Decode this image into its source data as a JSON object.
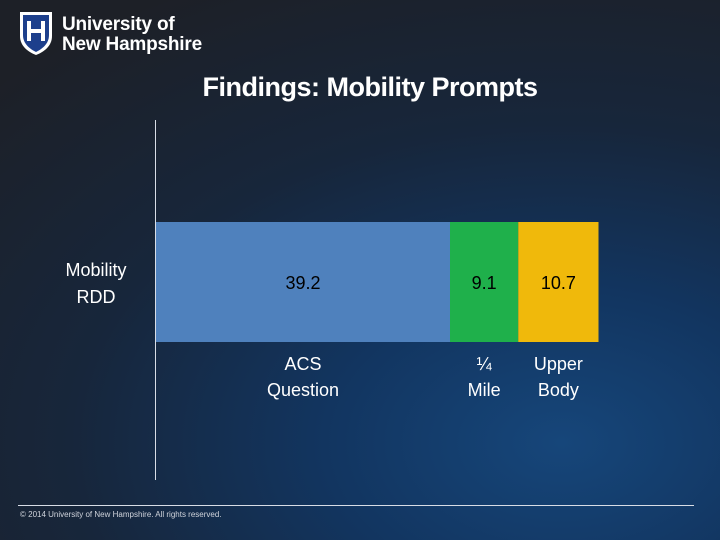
{
  "logo": {
    "line1": "University of",
    "line2": "New Hampshire",
    "brand_color": "#1d3f8c"
  },
  "title": "Findings: Mobility Prompts",
  "chart_data": {
    "type": "bar",
    "orientation": "horizontal",
    "stacked": true,
    "title": "Findings: Mobility Prompts",
    "xlabel": "",
    "ylabel": "",
    "categories": [
      "Mobility RDD"
    ],
    "series": [
      {
        "name": "ACS Question",
        "values": [
          39.2
        ],
        "color": "#4f81bd"
      },
      {
        "name": "¼ Mile",
        "values": [
          9.1
        ],
        "color": "#1fb04b"
      },
      {
        "name": "Upper Body",
        "values": [
          10.7
        ],
        "color": "#f0b90b"
      }
    ],
    "xlim": [
      0,
      80
    ],
    "grid": false,
    "legend": "below-bars"
  },
  "footer": {
    "copyright": "© 2014 University of New Hampshire. All rights reserved."
  }
}
